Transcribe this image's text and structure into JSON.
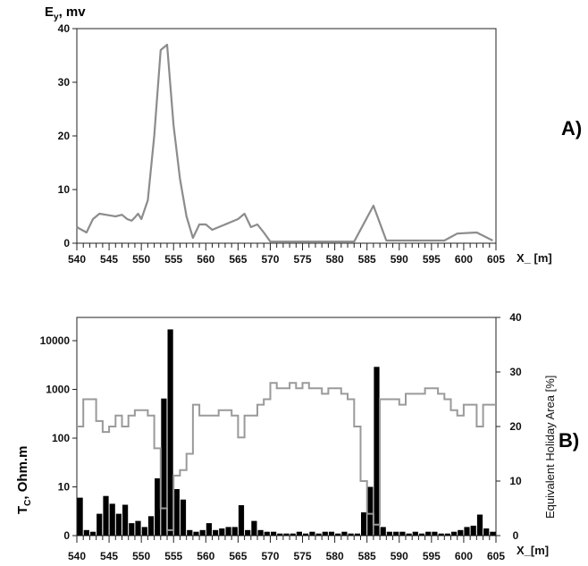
{
  "chart_data": [
    {
      "id": "A",
      "type": "line",
      "panel_label": "A)",
      "ylabel_main": "E",
      "ylabel_sub": "y",
      "ylabel_tail": ", mv",
      "xlabel": "X_ [m]",
      "xlim": [
        540,
        605
      ],
      "ylim": [
        0,
        40
      ],
      "xticks": [
        540,
        545,
        550,
        555,
        560,
        565,
        570,
        575,
        580,
        585,
        590,
        595,
        600,
        605
      ],
      "yticks": [
        0,
        10,
        20,
        30,
        40
      ],
      "series": [
        {
          "color": "#8c8c8c",
          "x": [
            540,
            541.5,
            542.5,
            543.5,
            545,
            546,
            547,
            547.8,
            548.5,
            549,
            549.5,
            550,
            551,
            552,
            553,
            554,
            555,
            556,
            557,
            558,
            559,
            560,
            561,
            562,
            563,
            564,
            565,
            566,
            567,
            568,
            569,
            570,
            583,
            586,
            588,
            597,
            599,
            602,
            604.5
          ],
          "y": [
            3,
            2,
            4.5,
            5.5,
            5.2,
            5,
            5.3,
            4.5,
            4.2,
            4.8,
            5.5,
            4.5,
            8,
            20,
            36,
            37,
            22,
            12,
            5,
            1,
            3.5,
            3.5,
            2.5,
            3,
            3.5,
            4,
            4.5,
            5.5,
            3,
            3.5,
            2,
            0.3,
            0.3,
            7,
            0.5,
            0.5,
            1.8,
            2,
            0.5
          ]
        }
      ]
    },
    {
      "id": "B",
      "type": "bar",
      "panel_label": "B)",
      "ylabel_main": "T",
      "ylabel_sub": "C",
      "ylabel_tail": ", Ohm.m",
      "ylabel_right": "Equivalent Holiday Area [%]",
      "xlabel": "X_[m]",
      "xlim": [
        540,
        605
      ],
      "ylim_left_log": [
        1,
        30000
      ],
      "yticks_left": [
        0,
        10,
        100,
        1000,
        10000
      ],
      "ylim_right": [
        0,
        40
      ],
      "yticks_right": [
        0,
        10,
        20,
        30,
        40
      ],
      "xticks": [
        540,
        545,
        550,
        555,
        560,
        565,
        570,
        575,
        580,
        585,
        590,
        595,
        600,
        605
      ],
      "bars": {
        "color": "#000000",
        "x": [
          540,
          541,
          542,
          543,
          544,
          545,
          546,
          547,
          548,
          549,
          550,
          551,
          552,
          553,
          554,
          555,
          556,
          557,
          558,
          559,
          560,
          561,
          562,
          563,
          564,
          565,
          566,
          567,
          568,
          569,
          570,
          571,
          572,
          573,
          574,
          575,
          576,
          577,
          578,
          579,
          580,
          581,
          582,
          583,
          584,
          585,
          586,
          587,
          588,
          589,
          590,
          591,
          592,
          593,
          594,
          595,
          596,
          597,
          598,
          599,
          600,
          601,
          602,
          603,
          604
        ],
        "values": [
          6,
          1.3,
          1.2,
          2.8,
          6.5,
          4.5,
          2.8,
          4.3,
          1.8,
          2,
          1.5,
          2.5,
          15,
          650,
          17000,
          9,
          5.5,
          1.3,
          1.2,
          1.3,
          1.8,
          1.3,
          1.4,
          1.5,
          1.5,
          4.2,
          1.3,
          2,
          1.3,
          1.2,
          1.2,
          1.1,
          1.1,
          1.1,
          1.2,
          1.1,
          1.2,
          1.1,
          1.2,
          1.2,
          1.1,
          1.2,
          1.1,
          1.1,
          3,
          10,
          2900,
          1.5,
          1.2,
          1.2,
          1.2,
          1.1,
          1.2,
          1.1,
          1.2,
          1.2,
          1.1,
          1.1,
          1.2,
          1.3,
          1.5,
          1.6,
          2.7,
          1.4,
          1.2
        ]
      },
      "step_series": {
        "color": "#9a9a9a",
        "x": [
          540,
          541,
          542,
          543,
          544,
          545,
          546,
          547,
          548,
          549,
          550,
          551,
          552,
          553,
          554,
          555,
          556,
          557,
          558,
          559,
          560,
          561,
          562,
          563,
          564,
          565,
          566,
          567,
          568,
          569,
          570,
          571,
          572,
          573,
          574,
          575,
          576,
          577,
          578,
          579,
          580,
          581,
          582,
          583,
          584,
          585,
          586,
          587,
          588,
          589,
          590,
          591,
          592,
          593,
          594,
          595,
          596,
          597,
          598,
          599,
          600,
          601,
          602,
          603,
          604
        ],
        "values": [
          20,
          25,
          25,
          21,
          19,
          20,
          22,
          20,
          22,
          23,
          23,
          22,
          16,
          5,
          1,
          11,
          12,
          15,
          24,
          22,
          22,
          22,
          23,
          23,
          22,
          18,
          22,
          22,
          24,
          25,
          28,
          27,
          27,
          28,
          27,
          28,
          27,
          27,
          26,
          27,
          27,
          26,
          25,
          20,
          10,
          4,
          2,
          25,
          25,
          25,
          24,
          26,
          26,
          26,
          27,
          27,
          26,
          25,
          23,
          22,
          24,
          24,
          20,
          24,
          24
        ]
      }
    }
  ]
}
